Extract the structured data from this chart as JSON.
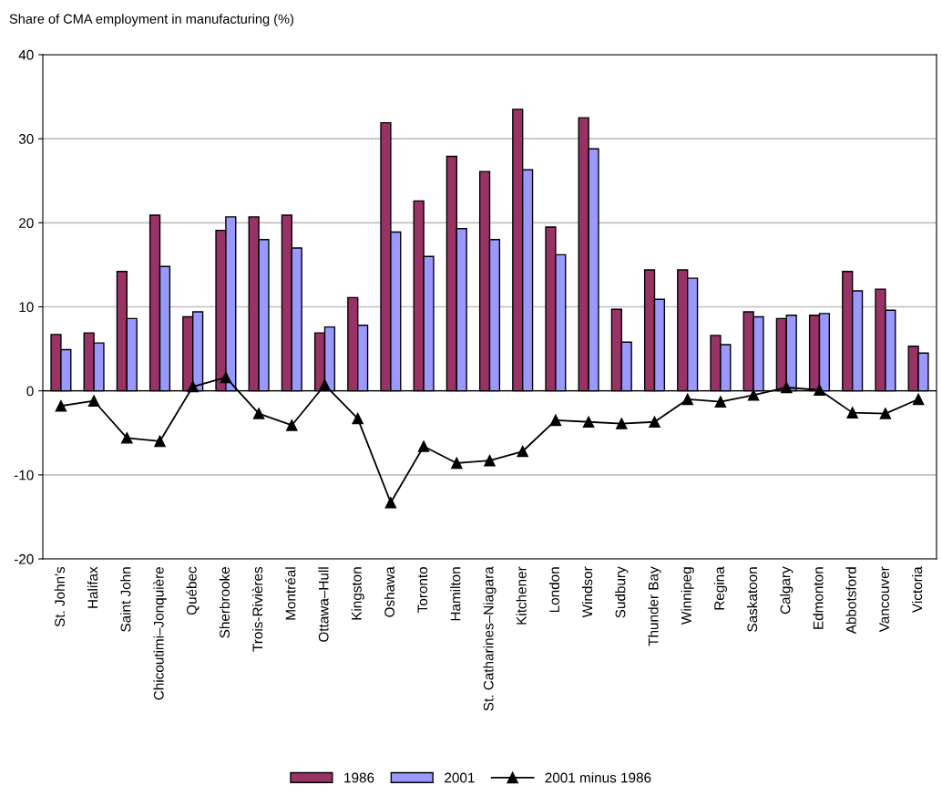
{
  "chart_data": {
    "type": "bar",
    "ylabel": "Share of CMA employment in manufacturing (%)",
    "categories": [
      "St. John's",
      "Halifax",
      "Saint John",
      "Chicoutimi–Jonquière",
      "Québec",
      "Sherbrooke",
      "Trois-Rivières",
      "Montréal",
      "Ottawa–Hull",
      "Kingston",
      "Oshawa",
      "Toronto",
      "Hamilton",
      "St. Catharines–Niagara",
      "Kitchener",
      "London",
      "Windsor",
      "Sudbury",
      "Thunder Bay",
      "Winnipeg",
      "Regina",
      "Saskatoon",
      "Calgary",
      "Edmonton",
      "Abbotsford",
      "Vancouver",
      "Victoria"
    ],
    "series": [
      {
        "name": "1986",
        "color": "#993366",
        "values": [
          6.7,
          6.9,
          14.2,
          20.9,
          8.8,
          19.1,
          20.7,
          20.9,
          6.9,
          11.1,
          31.9,
          22.6,
          27.9,
          26.1,
          33.5,
          19.5,
          32.5,
          9.7,
          14.4,
          14.4,
          6.6,
          9.4,
          8.6,
          9.0,
          14.2,
          12.1,
          5.3
        ]
      },
      {
        "name": "2001",
        "color": "#9999ff",
        "values": [
          4.9,
          5.7,
          8.6,
          14.8,
          9.4,
          20.7,
          18.0,
          17.0,
          7.6,
          7.8,
          18.9,
          16.0,
          19.3,
          18.0,
          26.3,
          16.2,
          28.8,
          5.8,
          10.9,
          13.4,
          5.5,
          8.8,
          9.0,
          9.2,
          11.9,
          9.6,
          4.5
        ]
      },
      {
        "name": "2001 minus 1986",
        "type": "line",
        "color": "#000000",
        "marker": "triangle",
        "values": [
          -1.8,
          -1.2,
          -5.6,
          -6.0,
          0.5,
          1.6,
          -2.7,
          -4.1,
          0.7,
          -3.3,
          -13.3,
          -6.6,
          -8.6,
          -8.3,
          -7.2,
          -3.5,
          -3.7,
          -3.9,
          -3.7,
          -1.0,
          -1.3,
          -0.5,
          0.4,
          0.1,
          -2.6,
          -2.7,
          -1.0
        ]
      }
    ],
    "ylim": [
      -20,
      40
    ],
    "yticks": [
      -20,
      -10,
      0,
      10,
      20,
      30,
      40
    ],
    "grid": "y",
    "legend": "bottom"
  }
}
